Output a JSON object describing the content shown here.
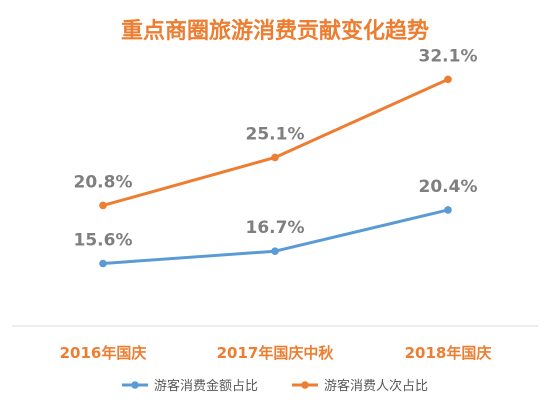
{
  "chart_data": {
    "type": "line",
    "title": "重点商圈旅游消费贡献变化趋势",
    "categories": [
      "2016年国庆",
      "2017年国庆中秋",
      "2018年国庆"
    ],
    "series": [
      {
        "name": "游客消费金额占比",
        "values": [
          15.6,
          16.7,
          20.4
        ],
        "labels": [
          "15.6%",
          "16.7%",
          "20.4%"
        ],
        "color": "#5b9bd5"
      },
      {
        "name": "游客消费人次占比",
        "values": [
          20.8,
          25.1,
          32.1
        ],
        "labels": [
          "20.8%",
          "25.1%",
          "32.1%"
        ],
        "color": "#ed7d31"
      }
    ],
    "unit": "%",
    "ylim": [
      10,
      35
    ],
    "grid": false,
    "legend_position": "bottom",
    "title_color": "#ed7d31",
    "category_label_color": "#ed7d31",
    "value_label_color": "#7f7f7f",
    "axis_color": "#d9d9d9"
  }
}
